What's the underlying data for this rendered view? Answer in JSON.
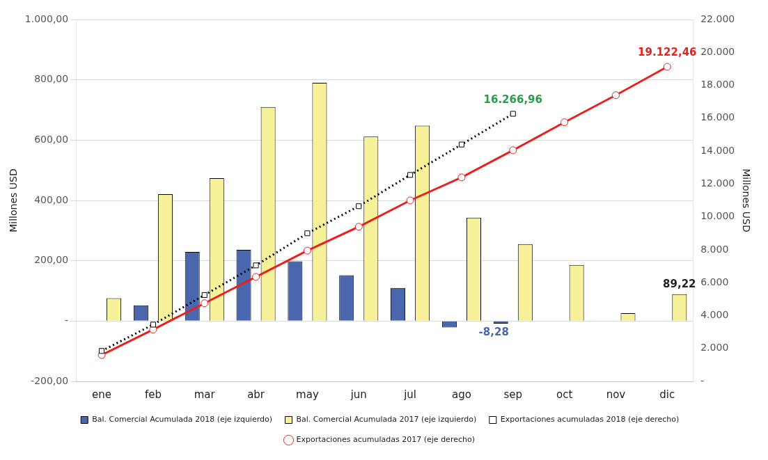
{
  "chart_data": {
    "type": "bar",
    "categories": [
      "ene",
      "feb",
      "mar",
      "abr",
      "may",
      "jun",
      "jul",
      "ago",
      "sep",
      "oct",
      "nov",
      "dic"
    ],
    "ylabel": "Millones USD",
    "y2label": "Millones USD",
    "ylim": [
      -200,
      1000
    ],
    "yticks": [
      {
        "value": -200,
        "label": "-200,00"
      },
      {
        "value": 0,
        "label": "-"
      },
      {
        "value": 200,
        "label": "200,00"
      },
      {
        "value": 400,
        "label": "400,00"
      },
      {
        "value": 600,
        "label": "600,00"
      },
      {
        "value": 800,
        "label": "800,00"
      },
      {
        "value": 1000,
        "label": "1.000,00"
      }
    ],
    "y2lim": [
      0,
      22000
    ],
    "y2ticks": [
      {
        "value": 0,
        "label": "-"
      },
      {
        "value": 2000,
        "label": "2.000"
      },
      {
        "value": 4000,
        "label": "4.000"
      },
      {
        "value": 6000,
        "label": "6.000"
      },
      {
        "value": 8000,
        "label": "8.000"
      },
      {
        "value": 10000,
        "label": "10.000"
      },
      {
        "value": 12000,
        "label": "12.000"
      },
      {
        "value": 14000,
        "label": "14.000"
      },
      {
        "value": 16000,
        "label": "16.000"
      },
      {
        "value": 18000,
        "label": "18.000"
      },
      {
        "value": 20000,
        "label": "20.000"
      },
      {
        "value": 22000,
        "label": "22.000"
      }
    ],
    "grid": "y",
    "legend": "bottom",
    "series": [
      {
        "name": "Bal. Comercial Acumulada 2018 (eje izquierdo)",
        "color": "#4a66ad",
        "values": [
          null,
          52,
          229,
          236,
          198,
          152,
          110,
          -21,
          -8.28,
          null,
          null,
          null
        ],
        "value_labels": [
          null,
          null,
          null,
          null,
          null,
          null,
          null,
          null,
          "-8,28",
          null,
          null,
          null
        ]
      },
      {
        "name": "Bal. Comercial Acumulada 2017 (eje izquierdo)",
        "color": "#f7f29a",
        "values": [
          76,
          421,
          474,
          710,
          790,
          612,
          648,
          343,
          255,
          186,
          26,
          89.22
        ],
        "value_labels": [
          null,
          null,
          null,
          null,
          null,
          null,
          null,
          null,
          null,
          null,
          null,
          "89,22"
        ]
      },
      {
        "name": "Exportaciones acumuladas 2018 (eje derecho)",
        "type": "line",
        "axis": "y2",
        "color": "#000000",
        "line_style": "dotted",
        "marker": "square",
        "values": [
          1850,
          3450,
          5250,
          7050,
          9000,
          10650,
          12550,
          14400,
          16266.96,
          null,
          null,
          null
        ],
        "value_labels": [
          null,
          null,
          null,
          null,
          null,
          null,
          null,
          null,
          "16.266,96",
          null,
          null,
          null
        ]
      },
      {
        "name": "Exportaciones acumuladas 2017 (eje derecho)",
        "type": "line",
        "axis": "y2",
        "color": "#e8201e",
        "line_style": "solid",
        "marker": "circle",
        "values": [
          1600,
          3150,
          4750,
          6350,
          7950,
          9400,
          11000,
          12400,
          14050,
          15750,
          17400,
          19122.46
        ],
        "value_labels": [
          null,
          null,
          null,
          null,
          null,
          null,
          null,
          null,
          null,
          null,
          null,
          "19.122,46"
        ]
      }
    ]
  }
}
